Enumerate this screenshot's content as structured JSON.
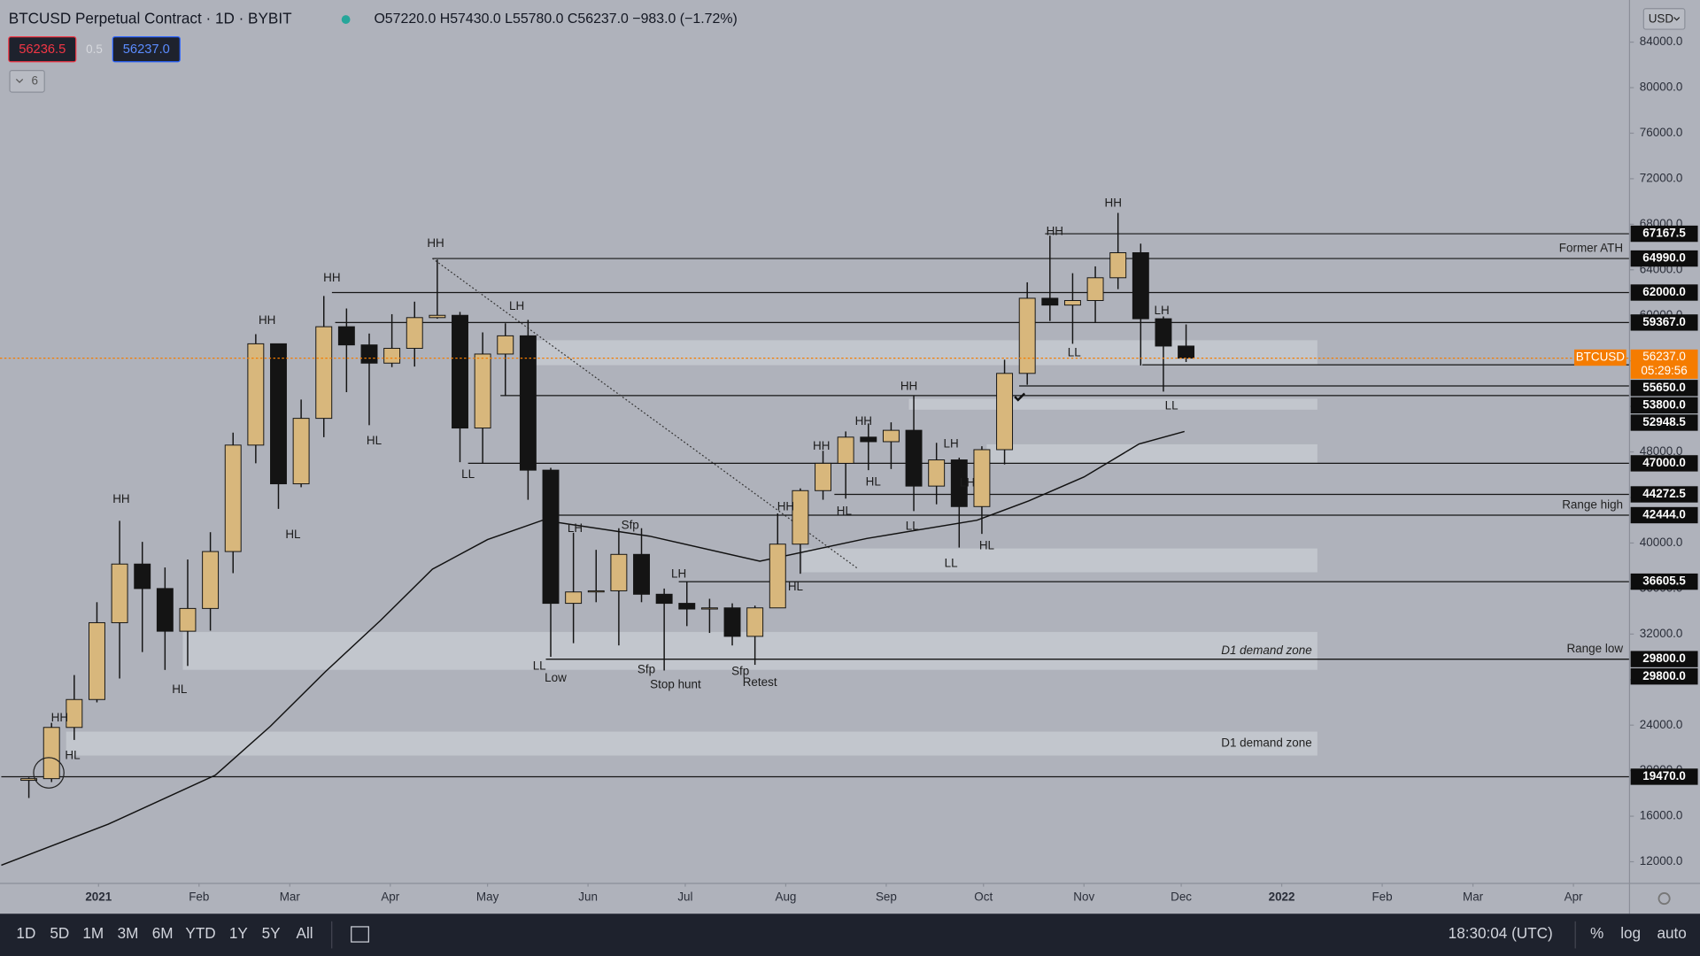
{
  "header": {
    "title": "BTCUSD Perpetual Contract · 1D · BYBIT",
    "ohlc": "O57220.0 H57430.0 L55780.0 C56237.0 −983.0 (−1.72%)",
    "bid": "56236.5",
    "spread": "0.5",
    "ask": "56237.0",
    "indicators": "6",
    "currency": "USD"
  },
  "chart_data": {
    "type": "candlestick",
    "x": [
      -25,
      -18,
      -11,
      -4,
      3,
      10,
      17,
      24,
      31,
      38,
      45,
      52,
      59,
      66,
      73,
      80,
      87,
      94,
      101,
      108,
      115,
      122,
      129,
      136,
      143,
      150,
      157,
      164,
      171,
      178,
      185,
      192,
      199,
      206,
      213,
      220,
      227,
      234,
      241,
      248,
      255,
      262,
      269,
      276,
      283,
      290,
      297,
      304,
      311,
      318,
      325,
      332
    ],
    "open": [
      19150,
      19300,
      23800,
      26250,
      33000,
      38150,
      36000,
      32250,
      34250,
      39250,
      48600,
      57500,
      45200,
      50950,
      59000,
      57400,
      55800,
      57100,
      59800,
      60000,
      50100,
      56600,
      58200,
      46400,
      34700,
      35700,
      35800,
      39000,
      35500,
      34700,
      34200,
      34300,
      31800,
      34300,
      39900,
      44600,
      47000,
      49300,
      48900,
      49900,
      45000,
      47300,
      43200,
      48200,
      54900,
      61500,
      60900,
      61300,
      63300,
      65500,
      59700,
      57300
    ],
    "high": [
      19400,
      24200,
      28400,
      34800,
      41950,
      40100,
      37850,
      38550,
      40950,
      49700,
      58350,
      57500,
      52600,
      61700,
      60600,
      58400,
      60100,
      61200,
      64900,
      60300,
      58500,
      59300,
      59600,
      46600,
      40900,
      39400,
      41300,
      41300,
      36000,
      36600,
      35100,
      34700,
      34500,
      42600,
      44800,
      48100,
      49800,
      50500,
      50600,
      52900,
      48800,
      47500,
      48500,
      56100,
      62900,
      67000,
      63700,
      64300,
      69000,
      66300,
      59900,
      59200
    ],
    "low": [
      17600,
      19000,
      22700,
      26000,
      28100,
      30420,
      28850,
      29200,
      32300,
      37350,
      47000,
      43000,
      44900,
      49300,
      53250,
      50350,
      55450,
      55500,
      59700,
      47100,
      47000,
      52900,
      43800,
      30000,
      31200,
      34800,
      31000,
      34800,
      28800,
      32700,
      32100,
      31000,
      29300,
      34300,
      37300,
      43800,
      43900,
      46400,
      46500,
      42800,
      43400,
      39600,
      40800,
      46900,
      53900,
      59500,
      57500,
      59400,
      62300,
      55600,
      53300,
      55900
    ],
    "close": [
      19300,
      23800,
      26250,
      33000,
      38150,
      36000,
      32250,
      34250,
      39250,
      48600,
      57500,
      45200,
      50950,
      59000,
      57400,
      55800,
      57100,
      59800,
      60000,
      50100,
      56600,
      58200,
      46400,
      34700,
      35700,
      35800,
      39000,
      35500,
      34700,
      34200,
      34300,
      31800,
      34300,
      39900,
      44600,
      47000,
      49300,
      48900,
      49900,
      45000,
      47300,
      43200,
      48200,
      54900,
      61500,
      60900,
      61300,
      63300,
      65500,
      59700,
      57300,
      56237
    ],
    "up_color": "#d8b77c",
    "down_color": "#141414",
    "xlim": [
      -30.4,
      472.3
    ],
    "xticks": [
      {
        "value": 0,
        "label": "2021"
      },
      {
        "value": 31,
        "label": "Feb"
      },
      {
        "value": 59,
        "label": "Mar"
      },
      {
        "value": 90,
        "label": "Apr"
      },
      {
        "value": 120,
        "label": "May"
      },
      {
        "value": 151,
        "label": "Jun"
      },
      {
        "value": 181,
        "label": "Jul"
      },
      {
        "value": 212,
        "label": "Aug"
      },
      {
        "value": 243,
        "label": "Sep"
      },
      {
        "value": 273,
        "label": "Oct"
      },
      {
        "value": 304,
        "label": "Nov"
      },
      {
        "value": 334,
        "label": "Dec"
      },
      {
        "value": 365,
        "label": "2022"
      },
      {
        "value": 396,
        "label": "Feb"
      },
      {
        "value": 424,
        "label": "Mar"
      },
      {
        "value": 455,
        "label": "Apr"
      }
    ],
    "ylim": [
      10100,
      87700
    ],
    "yticks": [
      {
        "value": 84000,
        "label": "84000.0"
      },
      {
        "value": 80000,
        "label": "80000.0"
      },
      {
        "value": 76000,
        "label": "76000.0"
      },
      {
        "value": 72000,
        "label": "72000.0"
      },
      {
        "value": 68000,
        "label": "68000.0"
      },
      {
        "value": 64000,
        "label": "64000.0"
      },
      {
        "value": 60000,
        "label": "60000.0"
      },
      {
        "value": 56000,
        "label": "56000.0"
      },
      {
        "value": 52000,
        "label": "52000.0"
      },
      {
        "value": 48000,
        "label": "48000.0"
      },
      {
        "value": 44000,
        "label": "44000.0"
      },
      {
        "value": 40000,
        "label": "40000.0"
      },
      {
        "value": 36000,
        "label": "36000.0"
      },
      {
        "value": 32000,
        "label": "32000.0"
      },
      {
        "value": 28000,
        "label": "28000.0"
      },
      {
        "value": 24000,
        "label": "24000.0"
      },
      {
        "value": 20000,
        "label": "20000.0"
      },
      {
        "value": 16000,
        "label": "16000.0"
      },
      {
        "value": 12000,
        "label": "12000.0"
      }
    ],
    "grid": false,
    "moving_average": {
      "x": [
        -30,
        3,
        36,
        53,
        70,
        87,
        103,
        120,
        137,
        170,
        204,
        237,
        271,
        287,
        304,
        321,
        335
      ],
      "values": [
        11700,
        15300,
        19600,
        23900,
        28700,
        33200,
        37700,
        40300,
        42000,
        40600,
        38400,
        40400,
        42000,
        43700,
        45800,
        48700,
        49800
      ],
      "color": "#111111"
    },
    "levels": [
      {
        "value": 67167.5,
        "x": 292
      },
      {
        "value": 64990,
        "label": "64990.0",
        "x": 103,
        "text": "Former ATH"
      },
      {
        "value": 62000,
        "label": "62000.0",
        "x": 72
      },
      {
        "value": 59367,
        "label": "59367.0",
        "x": 73
      },
      {
        "value": 55650,
        "label": "55650.0",
        "x": 322
      },
      {
        "value": 53800,
        "label": "53800.0",
        "x": 284
      },
      {
        "value": 52948.5,
        "x": 124
      },
      {
        "value": 47000,
        "label": "47000.0",
        "x": 114
      },
      {
        "value": 44272.5,
        "x": 227
      },
      {
        "value": 42444,
        "label": "42444.0",
        "x": 137,
        "text": "Range high"
      },
      {
        "value": 36605.5,
        "x": 179
      },
      {
        "value": 29800,
        "label": "29800.0",
        "x": 138,
        "text": "Range low"
      },
      {
        "value": 29800,
        "label": "29800.0",
        "x": 138
      },
      {
        "value": 19470,
        "label": "19470.0",
        "x": -30
      }
    ],
    "zones": [
      {
        "top": 57810,
        "bottom": 55620,
        "start": 131,
        "end": 376
      },
      {
        "top": 52670,
        "bottom": 51710,
        "start": 250,
        "end": 376
      },
      {
        "top": 48670,
        "bottom": 46950,
        "start": 274,
        "end": 376
      },
      {
        "top": 39520,
        "bottom": 37430,
        "start": 217,
        "end": 376
      },
      {
        "top": 32190,
        "bottom": 28860,
        "start": 26,
        "end": 376,
        "text": "D1 demand zone"
      },
      {
        "top": 23430,
        "bottom": 21330,
        "start": -10,
        "end": 376,
        "text": "D1 demand zone"
      }
    ],
    "trendline": {
      "x": [
        103,
        234
      ],
      "y": [
        65000,
        37800
      ]
    },
    "annotations": [
      {
        "text": "HH",
        "x": -12,
        "y": 24600
      },
      {
        "text": "HL",
        "x": -8,
        "y": 21300
      },
      {
        "text": "HH",
        "x": 7,
        "y": 43800
      },
      {
        "text": "HL",
        "x": 25,
        "y": 27100
      },
      {
        "text": "HH",
        "x": 52,
        "y": 59500
      },
      {
        "text": "HL",
        "x": 60,
        "y": 40700
      },
      {
        "text": "HH",
        "x": 72,
        "y": 63240
      },
      {
        "text": "HL",
        "x": 85,
        "y": 48950
      },
      {
        "text": "HH",
        "x": 104,
        "y": 66290
      },
      {
        "text": "LH",
        "x": 129,
        "y": 60760
      },
      {
        "text": "LL",
        "x": 114,
        "y": 46000
      },
      {
        "text": "LL",
        "x": 136,
        "y": 29140
      },
      {
        "text": "Low",
        "x": 141,
        "y": 28100
      },
      {
        "text": "LH",
        "x": 147,
        "y": 41240
      },
      {
        "text": "Sfp",
        "x": 164,
        "y": 41520
      },
      {
        "text": "Sfp",
        "x": 169,
        "y": 28860
      },
      {
        "text": "Stop hunt",
        "x": 178,
        "y": 27520
      },
      {
        "text": "LH",
        "x": 179,
        "y": 37240
      },
      {
        "text": "Sfp",
        "x": 198,
        "y": 28670
      },
      {
        "text": "Retest",
        "x": 204,
        "y": 27710
      },
      {
        "text": "HH",
        "x": 212,
        "y": 43140
      },
      {
        "text": "HL",
        "x": 215,
        "y": 36100
      },
      {
        "text": "HH",
        "x": 223,
        "y": 48480
      },
      {
        "text": "HH",
        "x": 236,
        "y": 50670
      },
      {
        "text": "HL",
        "x": 230,
        "y": 42760
      },
      {
        "text": "HL",
        "x": 239,
        "y": 45330
      },
      {
        "text": "HH",
        "x": 250,
        "y": 53710
      },
      {
        "text": "LL",
        "x": 251,
        "y": 41430
      },
      {
        "text": "LH",
        "x": 263,
        "y": 48670
      },
      {
        "text": "LH",
        "x": 268,
        "y": 45240
      },
      {
        "text": "LL",
        "x": 263,
        "y": 38190
      },
      {
        "text": "HL",
        "x": 274,
        "y": 39710
      },
      {
        "text": "HH",
        "x": 295,
        "y": 67330
      },
      {
        "text": "LL",
        "x": 301,
        "y": 56670
      },
      {
        "text": "HH",
        "x": 313,
        "y": 69810
      },
      {
        "text": "LH",
        "x": 328,
        "y": 60380
      },
      {
        "text": "LL",
        "x": 331,
        "y": 52000
      }
    ],
    "last_price": {
      "value": 56237,
      "label": "56237.0",
      "symbol": "BTCUSD",
      "countdown": "05:29:56",
      "color": "#f57c00"
    }
  },
  "toolbar": {
    "ranges": [
      "1D",
      "5D",
      "1M",
      "3M",
      "6M",
      "YTD",
      "1Y",
      "5Y",
      "All"
    ],
    "clock": "18:30:04 (UTC)",
    "percent": "%",
    "log": "log",
    "auto": "auto"
  }
}
